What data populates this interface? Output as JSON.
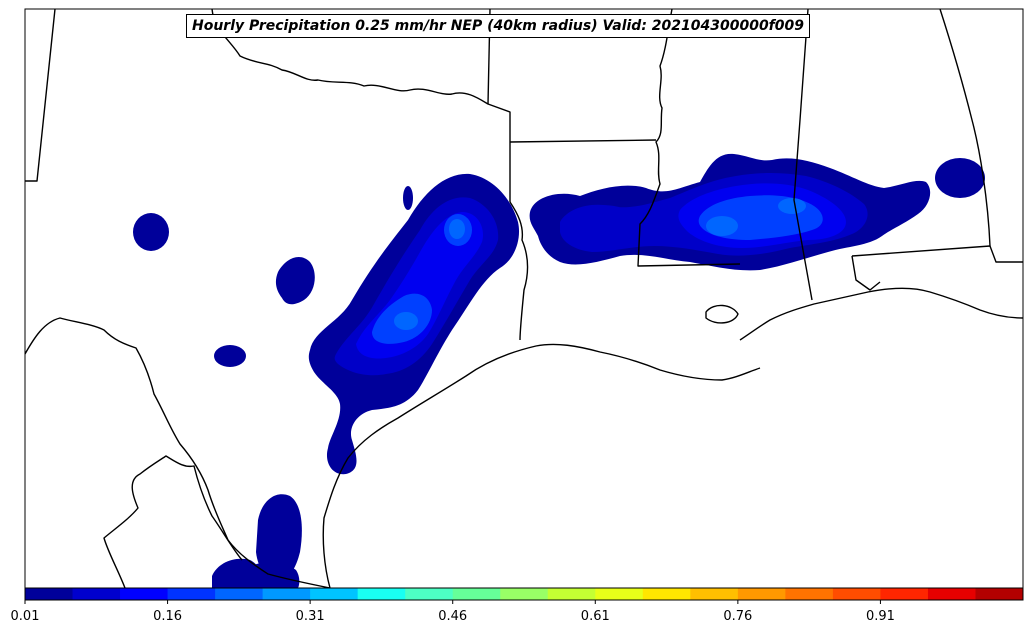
{
  "title": "Hourly Precipitation 0.25 mm/hr NEP (40km radius) Valid: 202104300000f009",
  "colorbar": {
    "tick_labels": [
      "0.01",
      "0.16",
      "0.31",
      "0.46",
      "0.61",
      "0.76",
      "0.91"
    ],
    "colors": [
      "#00009a",
      "#0000cd",
      "#0000ff",
      "#0033ff",
      "#0066ff",
      "#0099ff",
      "#00c4ff",
      "#19fff2",
      "#4dffc4",
      "#66ff99",
      "#99ff66",
      "#c4ff33",
      "#e8ff19",
      "#ffe600",
      "#ffbf00",
      "#ff9900",
      "#ff7300",
      "#ff4d00",
      "#ff2600",
      "#e60000",
      "#b30000"
    ]
  },
  "fill_colors": {
    "level1": "#00009a",
    "level2": "#0000c8",
    "level3": "#0000f0",
    "level4": "#0040ff",
    "level5": "#0066ff"
  },
  "line_color": "#000000"
}
